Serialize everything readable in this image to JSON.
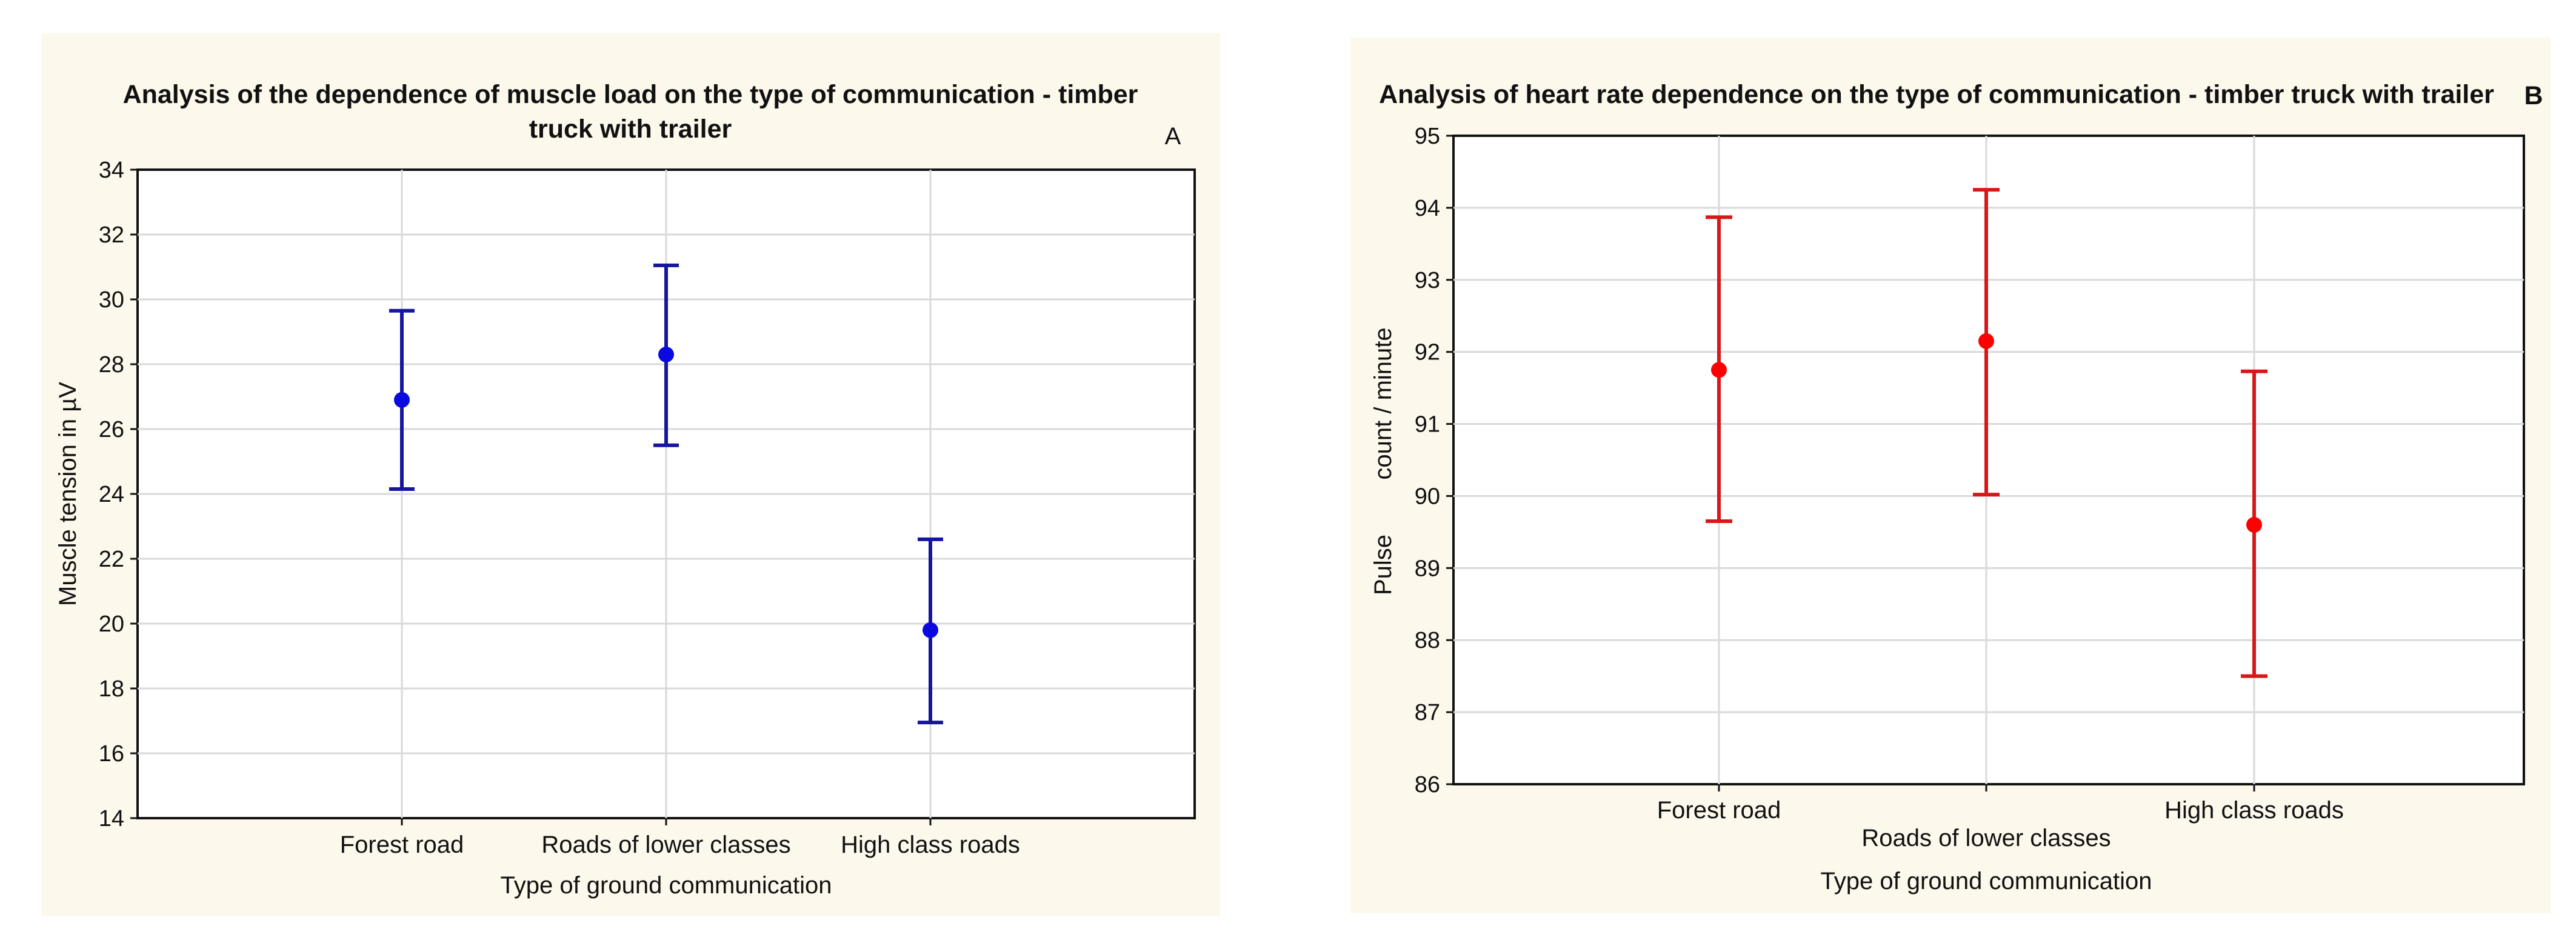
{
  "chart_data": [
    {
      "type": "scatter",
      "subtype": "mean-with-error-bars",
      "panel_label": "A",
      "title_lines": [
        "Analysis of the dependence of muscle load on the type of communication - timber",
        "truck with trailer"
      ],
      "xlabel": "Type of ground communication",
      "ylabel": "Muscle tension in µV",
      "categories": [
        "Forest road",
        "Roads of lower classes",
        "High class roads"
      ],
      "means": [
        26.9,
        28.3,
        19.8
      ],
      "lower": [
        24.15,
        25.5,
        16.95
      ],
      "upper": [
        29.65,
        31.05,
        22.6
      ],
      "ylim": [
        14,
        34
      ],
      "yticks": [
        14,
        16,
        18,
        20,
        22,
        24,
        26,
        28,
        30,
        32,
        34
      ],
      "grid": true,
      "color": "#1515a0",
      "point_color": "#0a0ae0",
      "background": "#fdf8ec"
    },
    {
      "type": "scatter",
      "subtype": "mean-with-error-bars",
      "panel_label": "B",
      "title_lines": [
        "Analysis of heart rate dependence on the type of communication - timber truck with trailer"
      ],
      "xlabel": "Type of ground communication",
      "ylabel_lines": [
        "Pulse",
        "count / minute"
      ],
      "categories": [
        "Forest road",
        "Roads of lower classes",
        "High class roads"
      ],
      "means": [
        91.75,
        92.15,
        89.6
      ],
      "lower": [
        89.65,
        90.02,
        87.5
      ],
      "upper": [
        93.87,
        94.25,
        91.73
      ],
      "ylim": [
        86,
        95
      ],
      "yticks": [
        86,
        87,
        88,
        89,
        90,
        91,
        92,
        93,
        94,
        95
      ],
      "grid": true,
      "color": "#d81818",
      "point_color": "#ff0000",
      "background": "#fdf8ec"
    }
  ]
}
